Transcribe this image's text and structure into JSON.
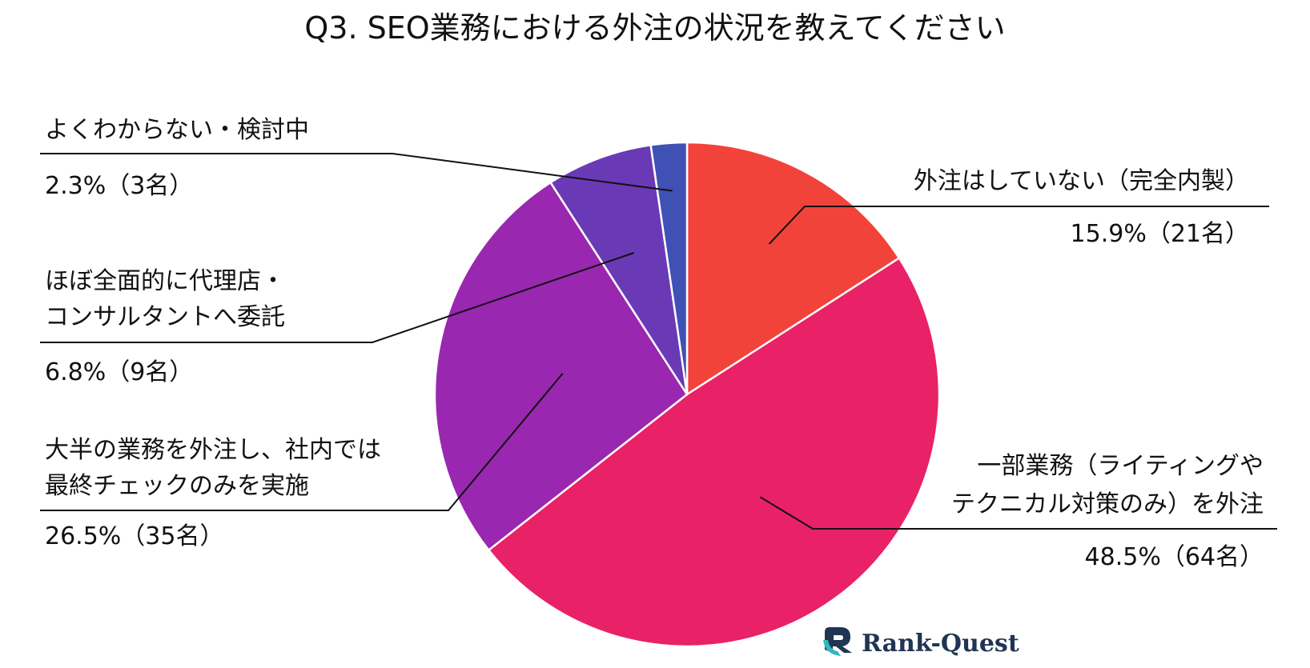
{
  "chart_data": {
    "type": "pie",
    "title": "Q3. SEO業務における外注の状況を教えてください",
    "slices": [
      {
        "lines": [
          "外注はしていない（完全内製）"
        ],
        "value_text": "15.9%（21名）",
        "percent": 15.9,
        "count": 21,
        "color": "#f2433a"
      },
      {
        "lines": [
          "一部業務（ライティングや",
          "テクニカル対策のみ）を外注"
        ],
        "value_text": "48.5%（64名）",
        "percent": 48.5,
        "count": 64,
        "color": "#e92166"
      },
      {
        "lines": [
          "大半の業務を外注し、社内では",
          "最終チェックのみを実施"
        ],
        "value_text": "26.5%（35名）",
        "percent": 26.5,
        "count": 35,
        "color": "#9a27b0"
      },
      {
        "lines": [
          "ほぼ全面的に代理店・",
          "コンサルタントへ委託"
        ],
        "value_text": "6.8%（9名）",
        "percent": 6.8,
        "count": 9,
        "color": "#6a3ab6"
      },
      {
        "lines": [
          "よくわからない・検討中"
        ],
        "value_text": "2.3%（3名）",
        "percent": 2.3,
        "count": 3,
        "color": "#3f51b5"
      }
    ]
  },
  "logo": {
    "text": "Rank-Quest",
    "icon": "rank-quest-logo-icon",
    "colors": [
      "#1f3553",
      "#2fb8c4"
    ]
  }
}
